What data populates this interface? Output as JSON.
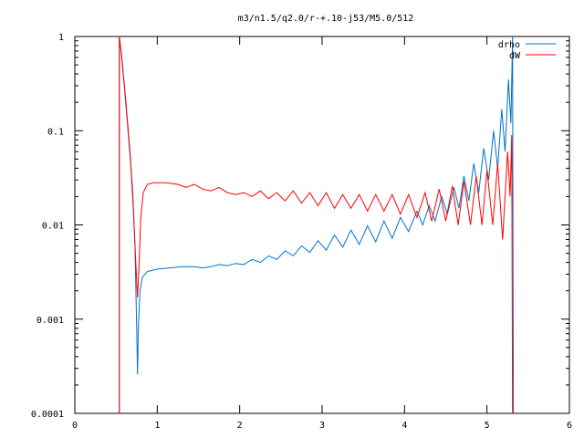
{
  "chart_data": {
    "type": "line",
    "title": "m3/n1.5/q2.0/r-+.10-j53/M5.0/512",
    "xlabel": "",
    "ylabel": "",
    "xlim": [
      0,
      6
    ],
    "ylim": [
      0.0001,
      1
    ],
    "y_scale": "log",
    "grid": false,
    "legend_position": "top-right",
    "x_ticks": [
      {
        "value": 0,
        "label": "0"
      },
      {
        "value": 1,
        "label": "1"
      },
      {
        "value": 2,
        "label": "2"
      },
      {
        "value": 3,
        "label": "3"
      },
      {
        "value": 4,
        "label": "4"
      },
      {
        "value": 5,
        "label": "5"
      },
      {
        "value": 6,
        "label": "6"
      }
    ],
    "y_ticks": [
      {
        "value": 0.0001,
        "label": "0.0001"
      },
      {
        "value": 0.001,
        "label": "0.001"
      },
      {
        "value": 0.01,
        "label": "0.01"
      },
      {
        "value": 0.1,
        "label": "0.1"
      },
      {
        "value": 1,
        "label": "1"
      }
    ],
    "series": [
      {
        "name": "drho",
        "color": "#0070d0",
        "points": [
          [
            0.54,
            0.0001
          ],
          [
            0.54,
            1.0
          ],
          [
            0.56,
            0.7
          ],
          [
            0.6,
            0.3
          ],
          [
            0.65,
            0.09
          ],
          [
            0.7,
            0.025
          ],
          [
            0.73,
            0.006
          ],
          [
            0.75,
            0.0008
          ],
          [
            0.76,
            0.00026
          ],
          [
            0.77,
            0.0008
          ],
          [
            0.79,
            0.002
          ],
          [
            0.82,
            0.0028
          ],
          [
            0.88,
            0.0032
          ],
          [
            1.0,
            0.0034
          ],
          [
            1.15,
            0.0035
          ],
          [
            1.3,
            0.0036
          ],
          [
            1.45,
            0.0036
          ],
          [
            1.55,
            0.0035
          ],
          [
            1.65,
            0.0036
          ],
          [
            1.75,
            0.0038
          ],
          [
            1.85,
            0.0037
          ],
          [
            1.95,
            0.0039
          ],
          [
            2.05,
            0.0038
          ],
          [
            2.15,
            0.0043
          ],
          [
            2.25,
            0.004
          ],
          [
            2.35,
            0.0047
          ],
          [
            2.45,
            0.0043
          ],
          [
            2.55,
            0.0053
          ],
          [
            2.65,
            0.0047
          ],
          [
            2.75,
            0.006
          ],
          [
            2.85,
            0.0051
          ],
          [
            2.95,
            0.0068
          ],
          [
            3.05,
            0.0054
          ],
          [
            3.15,
            0.0078
          ],
          [
            3.25,
            0.0058
          ],
          [
            3.35,
            0.0088
          ],
          [
            3.45,
            0.0062
          ],
          [
            3.55,
            0.0098
          ],
          [
            3.65,
            0.0066
          ],
          [
            3.75,
            0.011
          ],
          [
            3.85,
            0.0072
          ],
          [
            3.95,
            0.012
          ],
          [
            4.05,
            0.0085
          ],
          [
            4.15,
            0.014
          ],
          [
            4.22,
            0.01
          ],
          [
            4.3,
            0.016
          ],
          [
            4.37,
            0.011
          ],
          [
            4.45,
            0.02
          ],
          [
            4.52,
            0.013
          ],
          [
            4.6,
            0.025
          ],
          [
            4.66,
            0.015
          ],
          [
            4.72,
            0.033
          ],
          [
            4.78,
            0.018
          ],
          [
            4.84,
            0.045
          ],
          [
            4.9,
            0.022
          ],
          [
            4.96,
            0.065
          ],
          [
            5.02,
            0.03
          ],
          [
            5.08,
            0.1
          ],
          [
            5.13,
            0.04
          ],
          [
            5.18,
            0.17
          ],
          [
            5.22,
            0.06
          ],
          [
            5.26,
            0.35
          ],
          [
            5.29,
            0.12
          ],
          [
            5.31,
            1.0
          ],
          [
            5.32,
            0.0001
          ]
        ]
      },
      {
        "name": "dW",
        "color": "#ff0000",
        "points": [
          [
            0.54,
            0.0001
          ],
          [
            0.54,
            1.0
          ],
          [
            0.57,
            0.6
          ],
          [
            0.62,
            0.2
          ],
          [
            0.67,
            0.06
          ],
          [
            0.71,
            0.015
          ],
          [
            0.74,
            0.004
          ],
          [
            0.76,
            0.0017
          ],
          [
            0.78,
            0.004
          ],
          [
            0.8,
            0.012
          ],
          [
            0.83,
            0.022
          ],
          [
            0.88,
            0.027
          ],
          [
            0.95,
            0.028
          ],
          [
            1.1,
            0.028
          ],
          [
            1.25,
            0.027
          ],
          [
            1.35,
            0.025
          ],
          [
            1.45,
            0.027
          ],
          [
            1.55,
            0.024
          ],
          [
            1.65,
            0.023
          ],
          [
            1.75,
            0.025
          ],
          [
            1.85,
            0.022
          ],
          [
            1.95,
            0.021
          ],
          [
            2.05,
            0.022
          ],
          [
            2.15,
            0.02
          ],
          [
            2.25,
            0.023
          ],
          [
            2.35,
            0.019
          ],
          [
            2.45,
            0.022
          ],
          [
            2.55,
            0.018
          ],
          [
            2.65,
            0.023
          ],
          [
            2.75,
            0.017
          ],
          [
            2.85,
            0.022
          ],
          [
            2.95,
            0.016
          ],
          [
            3.05,
            0.022
          ],
          [
            3.15,
            0.015
          ],
          [
            3.25,
            0.021
          ],
          [
            3.35,
            0.015
          ],
          [
            3.45,
            0.021
          ],
          [
            3.55,
            0.014
          ],
          [
            3.65,
            0.021
          ],
          [
            3.75,
            0.014
          ],
          [
            3.85,
            0.021
          ],
          [
            3.95,
            0.013
          ],
          [
            4.05,
            0.021
          ],
          [
            4.15,
            0.012
          ],
          [
            4.25,
            0.022
          ],
          [
            4.33,
            0.011
          ],
          [
            4.42,
            0.024
          ],
          [
            4.5,
            0.011
          ],
          [
            4.58,
            0.026
          ],
          [
            4.65,
            0.01
          ],
          [
            4.72,
            0.029
          ],
          [
            4.8,
            0.01
          ],
          [
            4.87,
            0.033
          ],
          [
            4.94,
            0.01
          ],
          [
            5.0,
            0.038
          ],
          [
            5.07,
            0.01
          ],
          [
            5.13,
            0.045
          ],
          [
            5.19,
            0.007
          ],
          [
            5.25,
            0.06
          ],
          [
            5.28,
            0.02
          ],
          [
            5.3,
            0.09
          ],
          [
            5.31,
            0.0001
          ]
        ]
      }
    ]
  }
}
